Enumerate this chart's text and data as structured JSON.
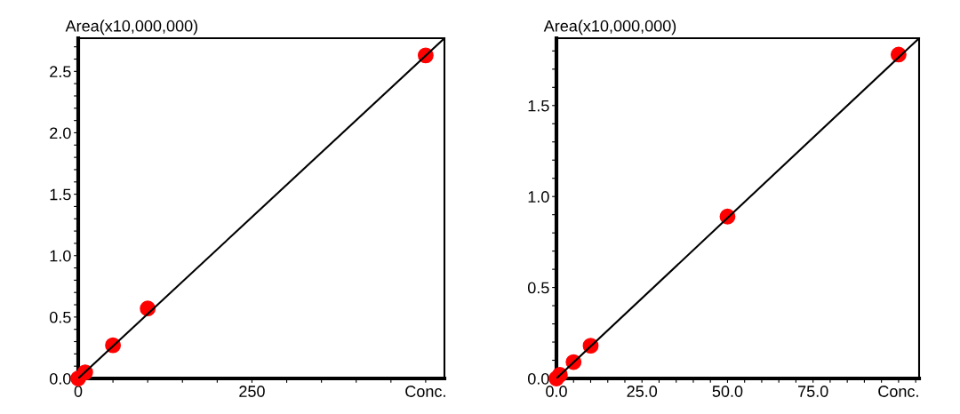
{
  "chart_data": [
    {
      "type": "scatter",
      "ylabel": "Area(x10,000,000)",
      "marker": "circle",
      "grid": false,
      "series": [
        {
          "type": "line",
          "marker": "none",
          "color": "#000000",
          "x": [
            0,
            527
          ],
          "values": [
            0,
            2.77
          ]
        },
        {
          "color": "#ff0000",
          "x": [
            0,
            10,
            50,
            100,
            500
          ],
          "values": [
            0,
            0.05,
            0.27,
            0.57,
            2.63
          ]
        }
      ],
      "xlim": [
        0,
        527
      ],
      "ylim": [
        0,
        2.77
      ],
      "xticks": [
        0,
        {
          "value": 50,
          "label": null
        },
        {
          "value": 100,
          "label": null
        },
        {
          "value": 150,
          "label": null
        },
        {
          "value": 200,
          "label": null
        },
        250,
        {
          "value": 300,
          "label": null
        },
        {
          "value": 350,
          "label": null
        },
        {
          "value": 400,
          "label": null
        },
        {
          "value": 450,
          "label": null
        },
        {
          "value": 500,
          "label": "Conc."
        }
      ],
      "yticks": [
        {
          "value": 0,
          "label": "0.0"
        },
        {
          "value": 0.1,
          "label": null
        },
        {
          "value": 0.2,
          "label": null
        },
        {
          "value": 0.3,
          "label": null
        },
        {
          "value": 0.4,
          "label": null
        },
        0.5,
        {
          "value": 0.6,
          "label": null
        },
        {
          "value": 0.7,
          "label": null
        },
        {
          "value": 0.8,
          "label": null
        },
        {
          "value": 0.9,
          "label": null
        },
        {
          "value": 1,
          "label": "1.0"
        },
        {
          "value": 1.1,
          "label": null
        },
        {
          "value": 1.2,
          "label": null
        },
        {
          "value": 1.3,
          "label": null
        },
        {
          "value": 1.4,
          "label": null
        },
        1.5,
        {
          "value": 1.6,
          "label": null
        },
        {
          "value": 1.7,
          "label": null
        },
        {
          "value": 1.8,
          "label": null
        },
        {
          "value": 1.9,
          "label": null
        },
        {
          "value": 2,
          "label": "2.0"
        },
        {
          "value": 2.1,
          "label": null
        },
        {
          "value": 2.2,
          "label": null
        },
        {
          "value": 2.3,
          "label": null
        },
        {
          "value": 2.4,
          "label": null
        },
        2.5,
        {
          "value": 2.6,
          "label": null
        },
        {
          "value": 2.7,
          "label": null
        }
      ]
    },
    {
      "type": "scatter",
      "ylabel": "Area(x10,000,000)",
      "marker": "circle",
      "grid": false,
      "series": [
        {
          "type": "line",
          "marker": "none",
          "color": "#000000",
          "x": [
            0,
            106
          ],
          "values": [
            0,
            1.87
          ]
        },
        {
          "color": "#ff0000",
          "x": [
            0,
            1,
            5,
            10,
            50,
            100
          ],
          "values": [
            0,
            0.02,
            0.09,
            0.18,
            0.89,
            1.78
          ]
        }
      ],
      "xlim": [
        0,
        106
      ],
      "ylim": [
        0,
        1.87
      ],
      "xticks": [
        {
          "value": 0,
          "label": "0.0"
        },
        {
          "value": 5,
          "label": null
        },
        {
          "value": 10,
          "label": null
        },
        {
          "value": 15,
          "label": null
        },
        {
          "value": 20,
          "label": null
        },
        {
          "value": 25,
          "label": "25.0"
        },
        {
          "value": 30,
          "label": null
        },
        {
          "value": 35,
          "label": null
        },
        {
          "value": 40,
          "label": null
        },
        {
          "value": 45,
          "label": null
        },
        {
          "value": 50,
          "label": "50.0"
        },
        {
          "value": 55,
          "label": null
        },
        {
          "value": 60,
          "label": null
        },
        {
          "value": 65,
          "label": null
        },
        {
          "value": 70,
          "label": null
        },
        {
          "value": 75,
          "label": "75.0"
        },
        {
          "value": 80,
          "label": null
        },
        {
          "value": 85,
          "label": null
        },
        {
          "value": 90,
          "label": null
        },
        {
          "value": 95,
          "label": null
        },
        {
          "value": 100,
          "label": "Conc."
        },
        {
          "value": 105,
          "label": null
        }
      ],
      "yticks": [
        {
          "value": 0,
          "label": "0.0"
        },
        {
          "value": 0.1,
          "label": null
        },
        {
          "value": 0.2,
          "label": null
        },
        {
          "value": 0.3,
          "label": null
        },
        {
          "value": 0.4,
          "label": null
        },
        0.5,
        {
          "value": 0.6,
          "label": null
        },
        {
          "value": 0.7,
          "label": null
        },
        {
          "value": 0.8,
          "label": null
        },
        {
          "value": 0.9,
          "label": null
        },
        {
          "value": 1,
          "label": "1.0"
        },
        {
          "value": 1.1,
          "label": null
        },
        {
          "value": 1.2,
          "label": null
        },
        {
          "value": 1.3,
          "label": null
        },
        {
          "value": 1.4,
          "label": null
        },
        1.5,
        {
          "value": 1.6,
          "label": null
        },
        {
          "value": 1.7,
          "label": null
        },
        {
          "value": 1.8,
          "label": null
        }
      ]
    }
  ]
}
